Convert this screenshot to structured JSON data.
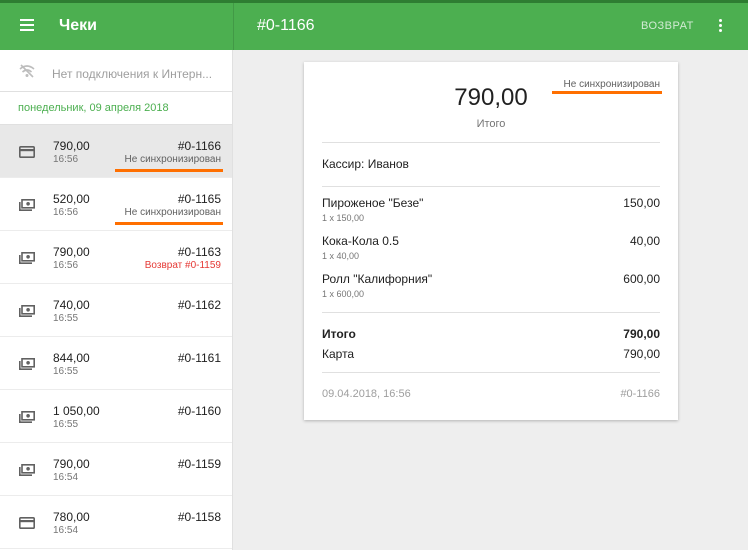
{
  "topbar": {
    "menu_icon": "hamburger-menu-icon",
    "app_title": "Чеки",
    "receipt_title": "#0-1166",
    "refund_label": "ВОЗВРАТ",
    "more_icon": "more-vertical-icon",
    "bg_color": "#4caf50"
  },
  "sidebar": {
    "offline_icon": "wifi-off-icon",
    "offline_text": "Нет подключения к Интерн...",
    "date_header": "понедельник, 09 апреля 2018",
    "items": [
      {
        "icon": "card-icon",
        "amount": "790,00",
        "time": "16:56",
        "number": "#0-1166",
        "status": "Не синхронизирован",
        "status_type": "unsynced",
        "selected": true
      },
      {
        "icon": "cash-icon",
        "amount": "520,00",
        "time": "16:56",
        "number": "#0-1165",
        "status": "Не синхронизирован",
        "status_type": "unsynced",
        "selected": false
      },
      {
        "icon": "cash-icon",
        "amount": "790,00",
        "time": "16:56",
        "number": "#0-1163",
        "status": "Возврат #0-1159",
        "status_type": "refund",
        "selected": false
      },
      {
        "icon": "cash-icon",
        "amount": "740,00",
        "time": "16:55",
        "number": "#0-1162",
        "status": "",
        "status_type": "",
        "selected": false
      },
      {
        "icon": "cash-icon",
        "amount": "844,00",
        "time": "16:55",
        "number": "#0-1161",
        "status": "",
        "status_type": "",
        "selected": false
      },
      {
        "icon": "cash-icon",
        "amount": "1 050,00",
        "time": "16:55",
        "number": "#0-1160",
        "status": "",
        "status_type": "",
        "selected": false
      },
      {
        "icon": "cash-icon",
        "amount": "790,00",
        "time": "16:54",
        "number": "#0-1159",
        "status": "",
        "status_type": "",
        "selected": false
      },
      {
        "icon": "card-icon",
        "amount": "780,00",
        "time": "16:54",
        "number": "#0-1158",
        "status": "",
        "status_type": "",
        "selected": false
      }
    ]
  },
  "receipt": {
    "total": "790,00",
    "total_label": "Итого",
    "sync_status": "Не синхронизирован",
    "cashier": "Кассир: Иванов",
    "lines": [
      {
        "name": "Пироженое \"Безе\"",
        "qty": "1 x 150,00",
        "price": "150,00"
      },
      {
        "name": "Кока-Кола 0.5",
        "qty": "1 x 40,00",
        "price": "40,00"
      },
      {
        "name": "Ролл \"Калифорния\"",
        "qty": "1 x 600,00",
        "price": "600,00"
      }
    ],
    "summary_total_label": "Итого",
    "summary_total_value": "790,00",
    "payment_label": "Карта",
    "payment_value": "790,00",
    "datetime": "09.04.2018, 16:56",
    "number": "#0-1166"
  },
  "colors": {
    "accent": "#4caf50",
    "warning_underline": "#ff6f00",
    "refund_text": "#e53935"
  }
}
